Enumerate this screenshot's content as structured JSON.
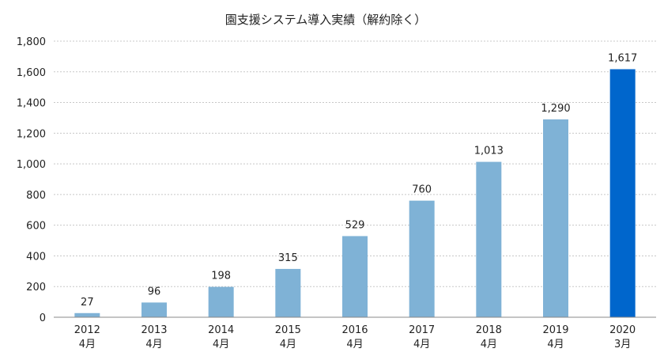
{
  "chart_data": {
    "type": "bar",
    "title": "園支援システム導入実績（解約除く）",
    "categories": [
      {
        "year": "2012",
        "month": "4月"
      },
      {
        "year": "2013",
        "month": "4月"
      },
      {
        "year": "2014",
        "month": "4月"
      },
      {
        "year": "2015",
        "month": "4月"
      },
      {
        "year": "2016",
        "month": "4月"
      },
      {
        "year": "2017",
        "month": "4月"
      },
      {
        "year": "2018",
        "month": "4月"
      },
      {
        "year": "2019",
        "month": "4月"
      },
      {
        "year": "2020",
        "month": "3月"
      }
    ],
    "values": [
      27,
      96,
      198,
      315,
      529,
      760,
      1013,
      1290,
      1617
    ],
    "value_labels": [
      "27",
      "96",
      "198",
      "315",
      "529",
      "760",
      "1,013",
      "1,290",
      "1,617"
    ],
    "ylim": [
      0,
      1800
    ],
    "yticks": [
      0,
      200,
      400,
      600,
      800,
      1000,
      1200,
      1400,
      1600,
      1800
    ],
    "ytick_labels": [
      "0",
      "200",
      "400",
      "600",
      "800",
      "1,000",
      "1,200",
      "1,400",
      "1,600",
      "1,800"
    ],
    "grid": true,
    "colors": {
      "bar": "#7fb2d6",
      "highlight": "#0066cc"
    },
    "highlight_index": 8
  }
}
